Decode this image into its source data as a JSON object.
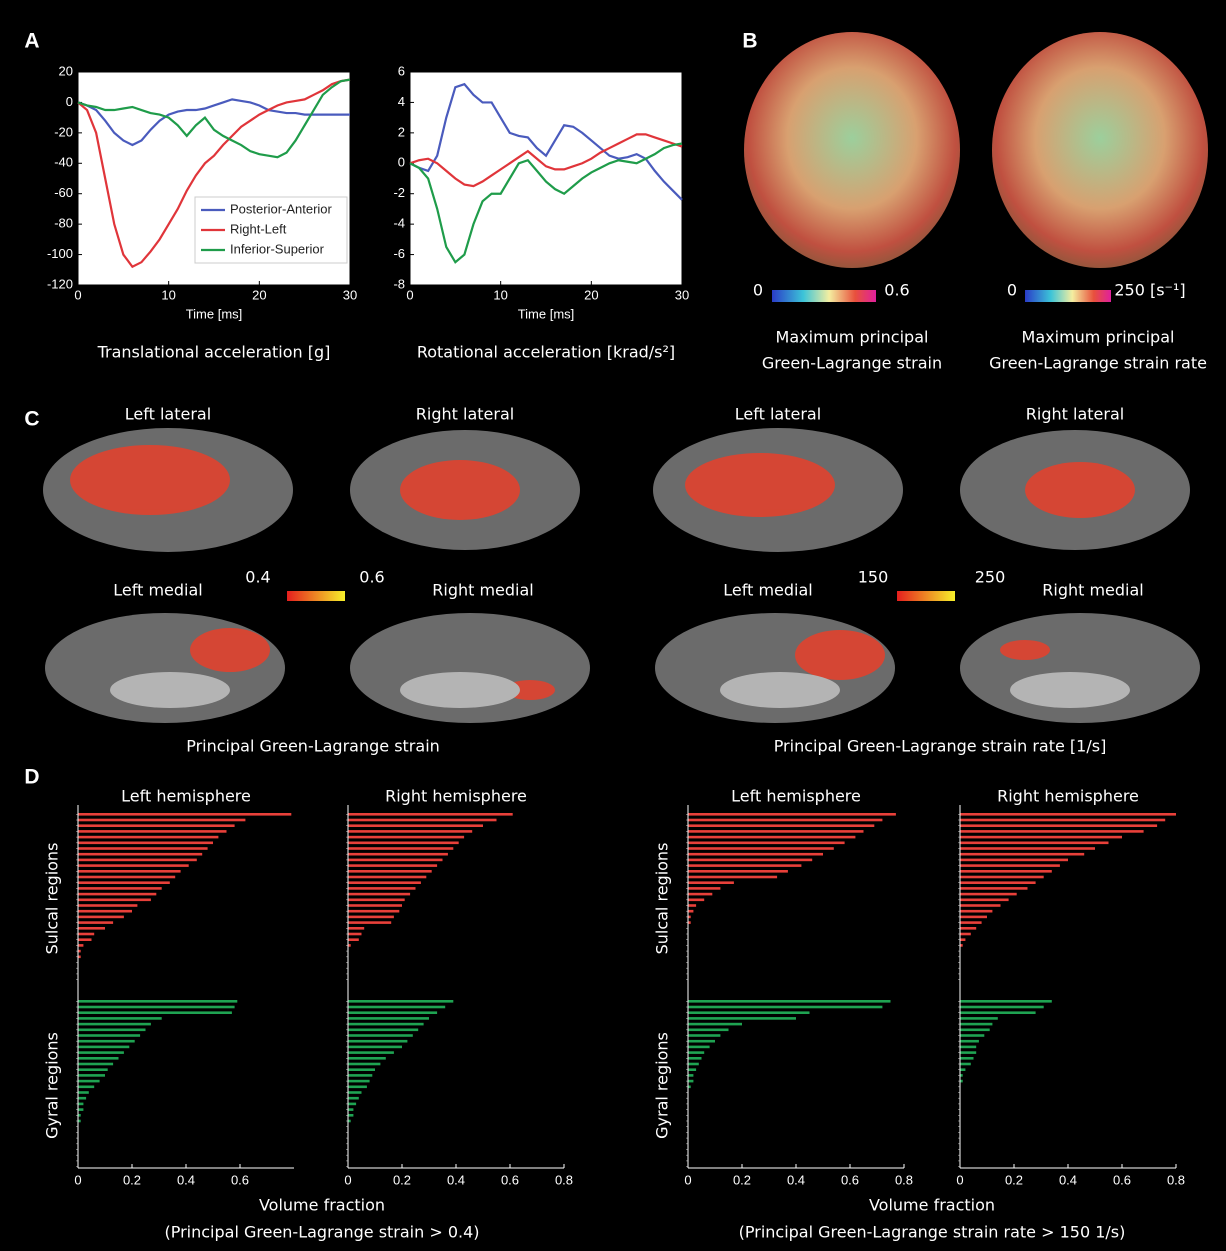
{
  "panel_labels": [
    "A",
    "B",
    "C",
    "D"
  ],
  "chart_data": [
    {
      "type": "line",
      "title": "Translational acceleration [g]",
      "xlabel": "Time [ms]",
      "x": [
        0,
        1,
        2,
        3,
        4,
        5,
        6,
        7,
        8,
        9,
        10,
        11,
        12,
        13,
        14,
        15,
        16,
        17,
        18,
        19,
        20,
        21,
        22,
        23,
        24,
        25,
        26,
        27,
        28,
        29,
        30
      ],
      "xlim": [
        0,
        30
      ],
      "xticks": [
        0,
        10,
        20,
        30
      ],
      "ylim": [
        -120,
        20
      ],
      "yticks": [
        20,
        0,
        -20,
        -40,
        -60,
        -80,
        -100,
        -120
      ],
      "legend": "lower right",
      "series": [
        {
          "name": "Posterior-Anterior",
          "color": "#4a5bbd",
          "values": [
            0,
            -2,
            -5,
            -12,
            -20,
            -25,
            -28,
            -25,
            -18,
            -12,
            -8,
            -6,
            -5,
            -5,
            -4,
            -2,
            0,
            2,
            1,
            0,
            -2,
            -5,
            -6,
            -7,
            -7,
            -8,
            -8,
            -8,
            -8,
            -8,
            -8
          ]
        },
        {
          "name": "Right-Left",
          "color": "#e0353a",
          "values": [
            0,
            -5,
            -20,
            -50,
            -80,
            -100,
            -108,
            -105,
            -98,
            -90,
            -80,
            -70,
            -58,
            -48,
            -40,
            -35,
            -28,
            -22,
            -16,
            -12,
            -8,
            -5,
            -2,
            0,
            1,
            2,
            5,
            8,
            12,
            14,
            15
          ]
        },
        {
          "name": "Inferior-Superior",
          "color": "#1f9c4a",
          "values": [
            0,
            -2,
            -3,
            -5,
            -5,
            -4,
            -3,
            -5,
            -7,
            -8,
            -10,
            -15,
            -22,
            -15,
            -10,
            -18,
            -22,
            -25,
            -28,
            -32,
            -34,
            -35,
            -36,
            -33,
            -25,
            -15,
            -5,
            5,
            10,
            14,
            15
          ]
        }
      ]
    },
    {
      "type": "line",
      "title": "Rotational acceleration [krad/s²]",
      "xlabel": "Time [ms]",
      "x": [
        0,
        1,
        2,
        3,
        4,
        5,
        6,
        7,
        8,
        9,
        10,
        11,
        12,
        13,
        14,
        15,
        16,
        17,
        18,
        19,
        20,
        21,
        22,
        23,
        24,
        25,
        26,
        27,
        28,
        29,
        30
      ],
      "xlim": [
        0,
        30
      ],
      "xticks": [
        0,
        10,
        20,
        30
      ],
      "ylim": [
        -8,
        6
      ],
      "yticks": [
        6,
        4,
        2,
        0,
        -2,
        -4,
        -6,
        -8
      ],
      "series": [
        {
          "color": "#4a5bbd",
          "values": [
            0,
            -0.3,
            -0.5,
            0.5,
            3,
            5,
            5.2,
            4.5,
            4,
            4,
            3,
            2,
            1.8,
            1.7,
            1,
            0.5,
            1.5,
            2.5,
            2.4,
            2,
            1.5,
            1,
            0.5,
            0.3,
            0.4,
            0.6,
            0.3,
            -0.5,
            -1.2,
            -1.8,
            -2.4
          ]
        },
        {
          "color": "#e0353a",
          "values": [
            0,
            0.2,
            0.3,
            0,
            -0.5,
            -1,
            -1.4,
            -1.5,
            -1.2,
            -0.8,
            -0.4,
            0,
            0.4,
            0.8,
            0.3,
            -0.2,
            -0.4,
            -0.4,
            -0.2,
            0,
            0.3,
            0.7,
            1,
            1.3,
            1.6,
            1.9,
            1.9,
            1.7,
            1.5,
            1.3,
            1.1
          ]
        },
        {
          "color": "#1f9c4a",
          "values": [
            0,
            -0.3,
            -1,
            -3,
            -5.5,
            -6.5,
            -6,
            -4,
            -2.5,
            -2,
            -2,
            -1,
            0,
            0.2,
            -0.5,
            -1.2,
            -1.7,
            -2,
            -1.5,
            -1,
            -0.6,
            -0.3,
            0,
            0.2,
            0.1,
            0,
            0.3,
            0.6,
            1,
            1.2,
            1.3
          ]
        }
      ]
    },
    {
      "type": "hbar",
      "title": "Left hemisphere",
      "xlim": [
        0,
        0.8
      ],
      "xticks": [
        0,
        0.2,
        0.4,
        0.6
      ],
      "groups": [
        {
          "name": "Sulcal regions",
          "color": "#e8403a",
          "values": [
            0.79,
            0.62,
            0.58,
            0.55,
            0.52,
            0.5,
            0.48,
            0.46,
            0.44,
            0.41,
            0.38,
            0.36,
            0.34,
            0.31,
            0.29,
            0.27,
            0.22,
            0.2,
            0.17,
            0.13,
            0.1,
            0.06,
            0.05,
            0.02,
            0.01,
            0.01,
            0,
            0,
            0,
            0
          ]
        },
        {
          "name": "Gyral regions",
          "color": "#1fa352",
          "values": [
            0.59,
            0.58,
            0.57,
            0.31,
            0.27,
            0.25,
            0.23,
            0.21,
            0.19,
            0.17,
            0.15,
            0.13,
            0.11,
            0.1,
            0.08,
            0.06,
            0.04,
            0.03,
            0.02,
            0.02,
            0.01,
            0.01,
            0,
            0,
            0,
            0,
            0,
            0,
            0,
            0
          ]
        }
      ]
    },
    {
      "type": "hbar",
      "title": "Right hemisphere",
      "xlim": [
        0,
        0.8
      ],
      "xticks": [
        0,
        0.2,
        0.4,
        0.6,
        0.8
      ],
      "groups": [
        {
          "color": "#e8403a",
          "values": [
            0.61,
            0.55,
            0.5,
            0.46,
            0.43,
            0.41,
            0.39,
            0.37,
            0.35,
            0.33,
            0.31,
            0.29,
            0.27,
            0.25,
            0.23,
            0.21,
            0.2,
            0.19,
            0.17,
            0.16,
            0.06,
            0.05,
            0.04,
            0.01,
            0,
            0,
            0,
            0,
            0,
            0
          ]
        },
        {
          "color": "#1fa352",
          "values": [
            0.39,
            0.36,
            0.33,
            0.3,
            0.28,
            0.26,
            0.24,
            0.22,
            0.2,
            0.17,
            0.14,
            0.12,
            0.1,
            0.09,
            0.08,
            0.07,
            0.05,
            0.04,
            0.03,
            0.02,
            0.02,
            0.01,
            0,
            0,
            0,
            0,
            0,
            0,
            0,
            0
          ]
        }
      ]
    },
    {
      "type": "hbar",
      "title": "Left hemisphere",
      "xlim": [
        0,
        0.8
      ],
      "xticks": [
        0,
        0.2,
        0.4,
        0.6,
        0.8
      ],
      "groups": [
        {
          "name": "Sulcal regions",
          "color": "#e8403a",
          "values": [
            0.77,
            0.72,
            0.69,
            0.65,
            0.62,
            0.58,
            0.54,
            0.5,
            0.46,
            0.42,
            0.37,
            0.33,
            0.17,
            0.12,
            0.09,
            0.06,
            0.03,
            0.02,
            0.01,
            0.01,
            0,
            0,
            0,
            0,
            0,
            0,
            0,
            0,
            0,
            0
          ]
        },
        {
          "name": "Gyral regions",
          "color": "#1fa352",
          "values": [
            0.75,
            0.72,
            0.45,
            0.4,
            0.2,
            0.15,
            0.12,
            0.1,
            0.08,
            0.06,
            0.05,
            0.04,
            0.03,
            0.02,
            0.02,
            0.01,
            0,
            0,
            0,
            0,
            0,
            0,
            0,
            0,
            0,
            0,
            0,
            0,
            0,
            0
          ]
        }
      ]
    },
    {
      "type": "hbar",
      "title": "Right hemisphere",
      "xlim": [
        0,
        0.8
      ],
      "xticks": [
        0,
        0.2,
        0.4,
        0.6,
        0.8
      ],
      "groups": [
        {
          "color": "#e8403a",
          "values": [
            0.8,
            0.76,
            0.73,
            0.68,
            0.6,
            0.55,
            0.5,
            0.46,
            0.4,
            0.37,
            0.34,
            0.31,
            0.28,
            0.25,
            0.21,
            0.18,
            0.15,
            0.12,
            0.1,
            0.08,
            0.06,
            0.04,
            0.02,
            0.01,
            0,
            0,
            0,
            0,
            0,
            0
          ]
        },
        {
          "color": "#1fa352",
          "values": [
            0.34,
            0.31,
            0.28,
            0.14,
            0.12,
            0.11,
            0.09,
            0.07,
            0.06,
            0.06,
            0.05,
            0.04,
            0.02,
            0.01,
            0.01,
            0,
            0,
            0,
            0,
            0,
            0,
            0,
            0,
            0,
            0,
            0,
            0,
            0,
            0,
            0
          ]
        }
      ]
    }
  ],
  "panel_b": {
    "maps": [
      {
        "cbar_min": 0,
        "cbar_max": 0.6,
        "title": [
          "Maximum principal",
          "Green-Lagrange strain"
        ]
      },
      {
        "cbar_min": 0,
        "cbar_max": {
          "value": 250,
          "label": "250 [s⁻¹]"
        },
        "title": [
          "Maximum principal",
          "Green-Lagrange strain rate"
        ]
      }
    ]
  },
  "panel_c": {
    "groups": [
      {
        "views": [
          "Left lateral",
          "Right lateral",
          "Left medial",
          "Right medial"
        ],
        "cbar_min": 0.4,
        "cbar_max": 0.6,
        "caption": "Principal Green-Lagrange strain"
      },
      {
        "views": [
          "Left lateral",
          "Right lateral",
          "Left medial",
          "Right medial"
        ],
        "cbar_min": 150,
        "cbar_max": 250,
        "caption": "Principal Green-Lagrange strain rate [1/s]"
      }
    ]
  },
  "panel_d": {
    "xlabels": [
      "Volume fraction",
      "Volume fraction"
    ],
    "captions": [
      "(Principal Green-Lagrange strain > 0.4)",
      "(Principal Green-Lagrange strain rate > 150 1/s)"
    ]
  }
}
